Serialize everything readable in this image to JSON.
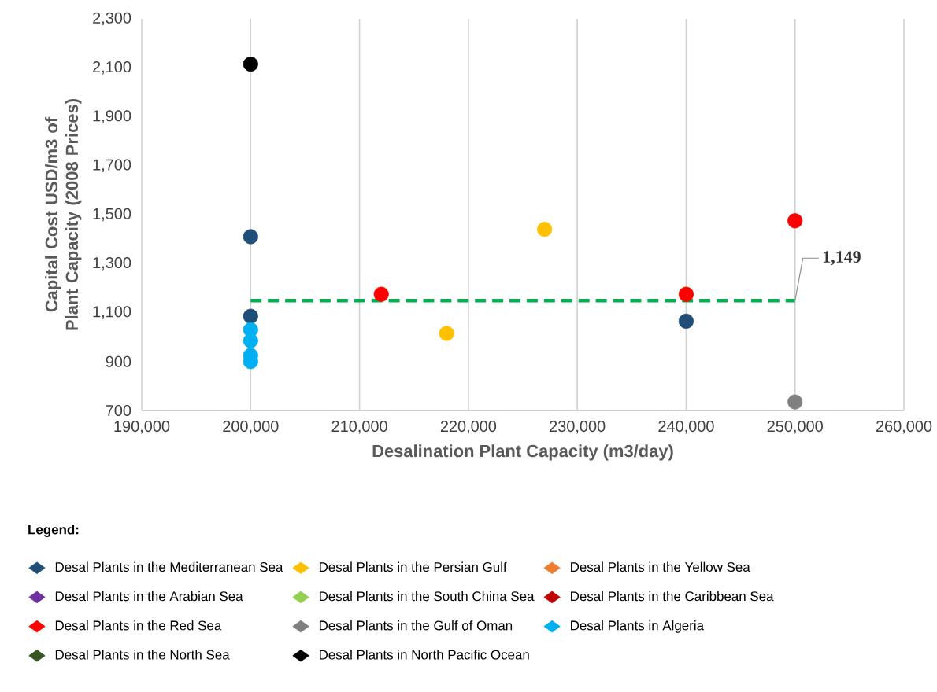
{
  "chart_data": {
    "type": "scatter",
    "xlabel": "Desalination Plant Capacity  (m3/day)",
    "ylabel": "Capital Cost USD/m3 of Plant Capacity (2008 Prices)",
    "legend_title": "Legend:",
    "xlim": [
      190000,
      260000
    ],
    "ylim": [
      700,
      2300
    ],
    "xticks": [
      {
        "value": 190000,
        "label": "190,000"
      },
      {
        "value": 200000,
        "label": "200,000"
      },
      {
        "value": 210000,
        "label": "210,000"
      },
      {
        "value": 220000,
        "label": "220,000"
      },
      {
        "value": 230000,
        "label": "230,000"
      },
      {
        "value": 240000,
        "label": "240,000"
      },
      {
        "value": 250000,
        "label": "250,000"
      },
      {
        "value": 260000,
        "label": "260,000"
      }
    ],
    "yticks": [
      {
        "value": 700,
        "label": "700"
      },
      {
        "value": 900,
        "label": "900"
      },
      {
        "value": 1100,
        "label": "1,100"
      },
      {
        "value": 1300,
        "label": "1,300"
      },
      {
        "value": 1500,
        "label": "1,500"
      },
      {
        "value": 1700,
        "label": "1,700"
      },
      {
        "value": 1900,
        "label": "1,900"
      },
      {
        "value": 2100,
        "label": "2,100"
      },
      {
        "value": 2300,
        "label": "2,300"
      }
    ],
    "grid": "x",
    "legend": "bottom",
    "series": [
      {
        "name": "Desal Plants in the Mediterranean Sea",
        "color": "#1f4e79",
        "x": [
          200000,
          200000,
          240000
        ],
        "values": [
          1410,
          1085,
          1065
        ]
      },
      {
        "name": "Desal Plants in the Persian Gulf",
        "color": "#ffc000",
        "x": [
          218000,
          227000
        ],
        "values": [
          1015,
          1440
        ]
      },
      {
        "name": "Desal Plants in the Yellow Sea",
        "color": "#ed7d31"
      },
      {
        "name": "Desal Plants in the Arabian Sea",
        "color": "#7030a0"
      },
      {
        "name": "Desal Plants in the South China Sea",
        "color": "#92d050"
      },
      {
        "name": "Desal Plants in the Caribbean Sea",
        "color": "#c00000"
      },
      {
        "name": "Desal Plants in the Red Sea",
        "color": "#ff0000",
        "x": [
          212000,
          240000,
          250000
        ],
        "values": [
          1175,
          1175,
          1475
        ]
      },
      {
        "name": "Desal Plants in the Gulf of Oman",
        "color": "#808080",
        "x": [
          250000
        ],
        "values": [
          735
        ]
      },
      {
        "name": "Desal Plants in Algeria",
        "color": "#00b0f0",
        "x": [
          200000,
          200000,
          200000,
          200000
        ],
        "values": [
          1030,
          985,
          925,
          900
        ]
      },
      {
        "name": "Desal Plants in the North Sea",
        "color": "#375623"
      },
      {
        "name": "Desal Plants in North Pacific Ocean",
        "color": "#000000",
        "x": [
          200000
        ],
        "values": [
          2115
        ]
      },
      {
        "type": "line",
        "color": "#00b050",
        "line_style": "dashed",
        "x": [
          200000,
          250000
        ],
        "values": [
          1149,
          1149
        ]
      }
    ],
    "annotations": [
      {
        "text": "1,149",
        "x": 250000,
        "y": 1149
      }
    ]
  }
}
